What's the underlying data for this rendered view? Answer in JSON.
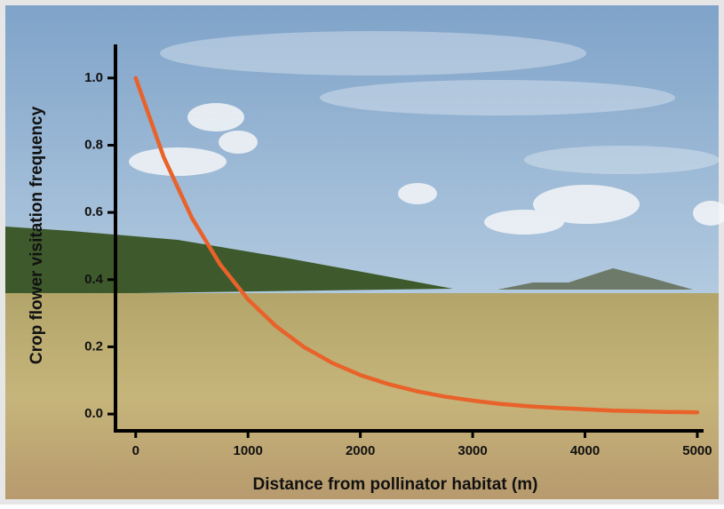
{
  "chart_data": {
    "type": "line",
    "x_label": "Distance from pollinator habitat (m)",
    "y_label": "Crop flower visitation frequency",
    "x": [
      0,
      250,
      500,
      750,
      1000,
      1250,
      1500,
      1750,
      2000,
      2250,
      2500,
      2750,
      3000,
      3250,
      3500,
      3750,
      4000,
      4250,
      4500,
      4750,
      5000
    ],
    "series": [
      {
        "color": "#e8622a",
        "values": [
          1.0,
          0.764,
          0.584,
          0.446,
          0.341,
          0.261,
          0.199,
          0.152,
          0.116,
          0.089,
          0.068,
          0.052,
          0.04,
          0.03,
          0.023,
          0.018,
          0.014,
          0.01,
          0.008,
          0.006,
          0.005
        ]
      }
    ],
    "xlim": [
      -180,
      5040
    ],
    "ylim": [
      -0.05,
      1.1
    ],
    "xticks": [
      0,
      1000,
      2000,
      3000,
      4000,
      5000
    ],
    "yticks": [
      {
        "value": 0,
        "label": "0.0"
      },
      {
        "value": 0.2,
        "label": "0.2"
      },
      {
        "value": 0.4,
        "label": "0.4"
      },
      {
        "value": 0.6,
        "label": "0.6"
      },
      {
        "value": 0.8,
        "label": "0.8"
      },
      {
        "value": 1.0,
        "label": "1.0"
      }
    ]
  }
}
